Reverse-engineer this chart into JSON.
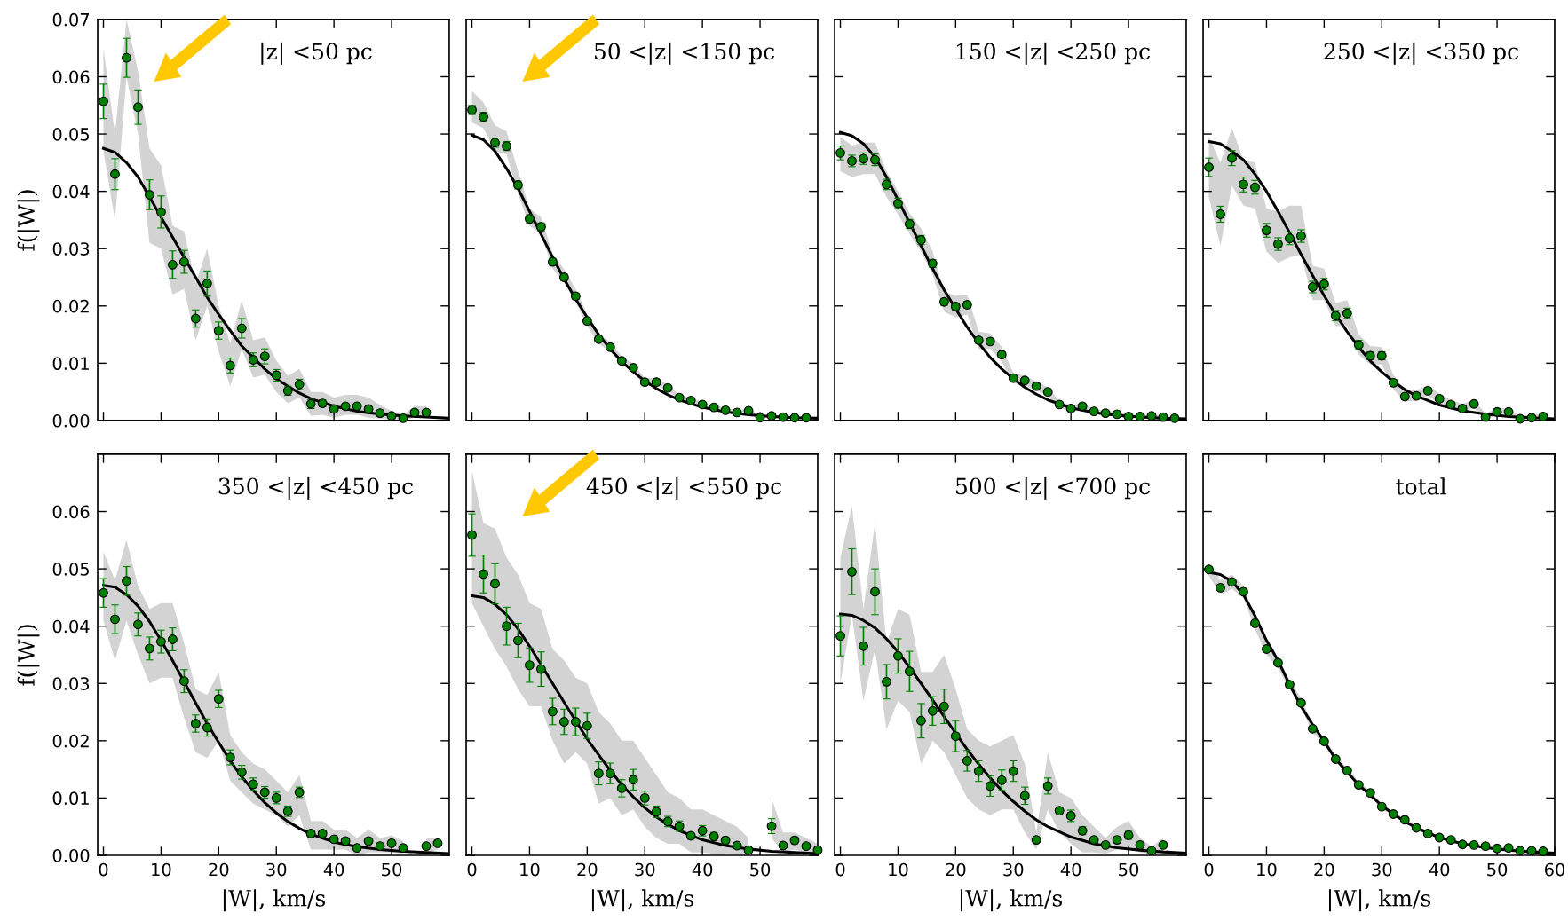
{
  "chart_data": [
    {
      "type": "scatter",
      "title": "|z| <50 pc",
      "ylabel": "f(|W|)",
      "xlim": [
        -1,
        60
      ],
      "xticks": [
        0,
        10,
        20,
        30,
        40,
        50
      ],
      "ylim": [
        0,
        0.07
      ],
      "yticks": [
        {
          "value": 0,
          "label": "0.00"
        },
        0.01,
        0.02,
        0.03,
        0.04,
        0.05,
        0.06,
        0.07
      ],
      "tick_labels": "y",
      "series": [
        {
          "marker": "circle",
          "color": "#008000",
          "x": [
            0,
            2,
            4,
            6,
            8,
            10,
            12,
            14,
            16,
            18,
            20,
            22,
            24,
            26,
            28,
            30,
            32,
            34,
            36,
            38,
            40,
            42,
            44,
            46,
            48,
            50,
            52,
            54,
            56
          ],
          "values": [
            0.0557,
            0.043,
            0.0633,
            0.0547,
            0.0394,
            0.0364,
            0.0272,
            0.0277,
            0.0178,
            0.0239,
            0.0157,
            0.0096,
            0.0161,
            0.0106,
            0.0112,
            0.0079,
            0.0052,
            0.0063,
            0.0029,
            0.003,
            0.002,
            0.0025,
            0.0025,
            0.002,
            0.0013,
            0.0008,
            0.0004,
            0.0014,
            0.0014
          ],
          "errors": [
            0.003,
            0.0027,
            0.0034,
            0.003,
            0.0026,
            0.0028,
            0.0024,
            0.002,
            0.0015,
            0.0022,
            0.0015,
            0.0013,
            0.0017,
            0.0012,
            0.0013,
            0.001,
            0.0008,
            0.0009,
            0.0008,
            0.0006,
            0.0005,
            0.0005,
            0.0005,
            0.0005,
            0.0005,
            0.0004,
            0.0003,
            0.0004,
            0.0004
          ],
          "lower": [
            0.047,
            0.035,
            0.06,
            0.05,
            0.031,
            0.03,
            0.022,
            0.023,
            0.014,
            0.02,
            0.012,
            0.006,
            0.0125,
            0.0075,
            0.008,
            0.005,
            0.003,
            0.004,
            0.0008,
            0.001,
            0.0005,
            0.001,
            0.001,
            0.0005,
            0.0003,
            0.0001,
            0.0,
            0.0005,
            0.0005
          ],
          "upper": [
            0.065,
            0.05,
            0.07,
            0.061,
            0.0475,
            0.0445,
            0.034,
            0.033,
            0.024,
            0.03,
            0.02,
            0.0135,
            0.021,
            0.014,
            0.0145,
            0.0105,
            0.0078,
            0.009,
            0.005,
            0.005,
            0.004,
            0.0045,
            0.0045,
            0.004,
            0.0027,
            0.0017,
            0.001,
            0.0025,
            0.0025
          ]
        },
        {
          "type": "line",
          "marker": "none",
          "color": "#000000",
          "x": [
            0,
            2,
            4,
            6,
            8,
            10,
            12,
            14,
            16,
            18,
            20,
            22,
            24,
            26,
            28,
            30,
            32,
            34,
            36,
            40,
            44,
            48,
            52,
            56,
            60
          ],
          "values": [
            0.0475,
            0.0468,
            0.045,
            0.0425,
            0.039,
            0.0355,
            0.032,
            0.0285,
            0.025,
            0.0215,
            0.0185,
            0.0157,
            0.013,
            0.011,
            0.009,
            0.0073,
            0.006,
            0.0048,
            0.0038,
            0.0025,
            0.0016,
            0.0011,
            0.0008,
            0.0006,
            0.0004
          ]
        }
      ]
    },
    {
      "type": "scatter",
      "title": "50 <|z| <150 pc",
      "xlim": [
        -1,
        60
      ],
      "xticks": [
        0,
        10,
        20,
        30,
        40,
        50
      ],
      "ylim": [
        0,
        0.07
      ],
      "yticks": [
        0,
        0.01,
        0.02,
        0.03,
        0.04,
        0.05,
        0.06,
        0.07
      ],
      "tick_labels": false,
      "series": [
        {
          "marker": "circle",
          "color": "#008000",
          "x": [
            0,
            2,
            4,
            6,
            8,
            10,
            12,
            14,
            16,
            18,
            20,
            22,
            24,
            26,
            28,
            30,
            32,
            34,
            36,
            38,
            40,
            42,
            44,
            46,
            48,
            50,
            52,
            54,
            56,
            58
          ],
          "values": [
            0.0542,
            0.053,
            0.0485,
            0.0479,
            0.0411,
            0.0352,
            0.0338,
            0.0277,
            0.025,
            0.0217,
            0.0174,
            0.0142,
            0.0128,
            0.0104,
            0.0092,
            0.0067,
            0.0067,
            0.0057,
            0.004,
            0.0035,
            0.0028,
            0.0023,
            0.0018,
            0.0014,
            0.0017,
            0.0005,
            0.0008,
            0.0006,
            0.0005,
            0.0005
          ],
          "errors": [
            0.0008,
            0.0008,
            0.0008,
            0.0008,
            0.0007,
            0.0007,
            0.0007,
            0.0006,
            0.0006,
            0.0005,
            0.0005,
            0.0005,
            0.0005,
            0.0004,
            0.0004,
            0.0004,
            0.0004,
            0.0003,
            0.0003,
            0.0003,
            0.0003,
            0.0003,
            0.0003,
            0.0003,
            0.0003,
            0.0002,
            0.0002,
            0.0002,
            0.0002,
            0.0002
          ],
          "lower": [
            0.052,
            0.051,
            0.047,
            0.0465,
            0.0395,
            0.034,
            0.0325,
            0.0265,
            0.024,
            0.0207,
            0.0165,
            0.0134,
            0.012,
            0.0097,
            0.0086,
            0.0061,
            0.0061,
            0.0052,
            0.0036,
            0.0031,
            0.0025,
            0.002,
            0.0015,
            0.0011,
            0.0014,
            0.0003,
            0.0006,
            0.0004,
            0.0003,
            0.0003
          ],
          "upper": [
            0.0575,
            0.0555,
            0.0515,
            0.0505,
            0.0435,
            0.037,
            0.0355,
            0.0292,
            0.0264,
            0.023,
            0.0185,
            0.0152,
            0.0137,
            0.0112,
            0.0099,
            0.0074,
            0.0074,
            0.0063,
            0.0045,
            0.004,
            0.0032,
            0.0027,
            0.0022,
            0.0018,
            0.0021,
            0.0008,
            0.0011,
            0.0009,
            0.0008,
            0.0008
          ]
        },
        {
          "type": "line",
          "marker": "none",
          "color": "#000000",
          "x": [
            0,
            2,
            4,
            6,
            8,
            10,
            12,
            14,
            16,
            18,
            20,
            22,
            24,
            26,
            28,
            30,
            32,
            34,
            36,
            40,
            44,
            48,
            52,
            56,
            60
          ],
          "values": [
            0.0498,
            0.049,
            0.047,
            0.044,
            0.0405,
            0.0365,
            0.0325,
            0.0285,
            0.0247,
            0.0212,
            0.018,
            0.015,
            0.0125,
            0.0103,
            0.0085,
            0.0069,
            0.0056,
            0.0045,
            0.0036,
            0.0023,
            0.0015,
            0.001,
            0.0007,
            0.0005,
            0.0004
          ]
        }
      ]
    },
    {
      "type": "scatter",
      "title": "150 <|z| <250 pc",
      "xlim": [
        -1,
        60
      ],
      "xticks": [
        0,
        10,
        20,
        30,
        40,
        50
      ],
      "ylim": [
        0,
        0.07
      ],
      "yticks": [
        0,
        0.01,
        0.02,
        0.03,
        0.04,
        0.05,
        0.06,
        0.07
      ],
      "tick_labels": false,
      "series": [
        {
          "marker": "circle",
          "color": "#008000",
          "x": [
            0,
            2,
            4,
            6,
            8,
            10,
            12,
            14,
            16,
            18,
            20,
            22,
            24,
            26,
            28,
            30,
            32,
            34,
            36,
            38,
            40,
            42,
            44,
            46,
            48,
            50,
            52,
            54,
            56,
            58
          ],
          "values": [
            0.0467,
            0.0453,
            0.0457,
            0.0455,
            0.0412,
            0.0379,
            0.0343,
            0.0315,
            0.0274,
            0.0207,
            0.0199,
            0.0202,
            0.014,
            0.0138,
            0.0115,
            0.0074,
            0.007,
            0.006,
            0.005,
            0.0028,
            0.0021,
            0.0025,
            0.0016,
            0.0013,
            0.0011,
            0.0007,
            0.0007,
            0.0008,
            0.0006,
            0.0004
          ],
          "errors": [
            0.0012,
            0.001,
            0.001,
            0.001,
            0.0009,
            0.0009,
            0.0008,
            0.0008,
            0.0007,
            0.0006,
            0.0006,
            0.0006,
            0.0005,
            0.0005,
            0.0004,
            0.0004,
            0.0003,
            0.0003,
            0.0003,
            0.0003,
            0.0002,
            0.0002,
            0.0002,
            0.0002,
            0.0002,
            0.0002,
            0.0002,
            0.0002,
            0.0002,
            0.0002
          ],
          "lower": [
            0.0435,
            0.0425,
            0.043,
            0.043,
            0.039,
            0.036,
            0.0325,
            0.0295,
            0.0255,
            0.019,
            0.018,
            0.0185,
            0.0125,
            0.0125,
            0.0103,
            0.0065,
            0.0062,
            0.0052,
            0.0043,
            0.0022,
            0.0016,
            0.002,
            0.0012,
            0.0009,
            0.0007,
            0.0004,
            0.0004,
            0.0005,
            0.0003,
            0.0002
          ],
          "upper": [
            0.0495,
            0.048,
            0.0485,
            0.0485,
            0.0435,
            0.04,
            0.0362,
            0.0335,
            0.0295,
            0.0225,
            0.0218,
            0.022,
            0.0155,
            0.0152,
            0.0128,
            0.0083,
            0.0078,
            0.0068,
            0.0058,
            0.0034,
            0.0027,
            0.003,
            0.0021,
            0.0017,
            0.0015,
            0.001,
            0.001,
            0.0011,
            0.0009,
            0.0006
          ]
        },
        {
          "type": "line",
          "marker": "none",
          "color": "#000000",
          "x": [
            0,
            2,
            4,
            6,
            8,
            10,
            12,
            14,
            16,
            18,
            20,
            22,
            24,
            26,
            28,
            30,
            32,
            34,
            36,
            40,
            44,
            48,
            52,
            56,
            60
          ],
          "values": [
            0.0503,
            0.0497,
            0.0483,
            0.046,
            0.0425,
            0.0385,
            0.0345,
            0.0305,
            0.0265,
            0.0228,
            0.0195,
            0.0163,
            0.0135,
            0.011,
            0.009,
            0.0073,
            0.0058,
            0.0046,
            0.0036,
            0.0022,
            0.0014,
            0.0009,
            0.0006,
            0.0004,
            0.0003
          ]
        }
      ]
    },
    {
      "type": "scatter",
      "title": "250 <|z| <350 pc",
      "xlim": [
        -1,
        60
      ],
      "xticks": [
        0,
        10,
        20,
        30,
        40,
        50
      ],
      "ylim": [
        0,
        0.07
      ],
      "yticks": [
        0,
        0.01,
        0.02,
        0.03,
        0.04,
        0.05,
        0.06,
        0.07
      ],
      "tick_labels": false,
      "series": [
        {
          "marker": "circle",
          "color": "#008000",
          "x": [
            0,
            2,
            4,
            6,
            8,
            10,
            12,
            14,
            16,
            18,
            20,
            22,
            24,
            26,
            28,
            30,
            32,
            34,
            36,
            38,
            40,
            42,
            44,
            46,
            48,
            50,
            52,
            54,
            56,
            58
          ],
          "values": [
            0.0442,
            0.036,
            0.0458,
            0.0412,
            0.0407,
            0.0332,
            0.0308,
            0.0318,
            0.0322,
            0.0233,
            0.0238,
            0.0183,
            0.0187,
            0.0132,
            0.0113,
            0.0113,
            0.0066,
            0.0042,
            0.0043,
            0.0052,
            0.0038,
            0.0028,
            0.0021,
            0.0029,
            0.0006,
            0.0015,
            0.0015,
            0.0003,
            0.0005,
            0.0007
          ],
          "errors": [
            0.0016,
            0.0014,
            0.0013,
            0.0013,
            0.0012,
            0.0012,
            0.0011,
            0.0011,
            0.0011,
            0.001,
            0.001,
            0.0009,
            0.0009,
            0.0008,
            0.0007,
            0.0007,
            0.0006,
            0.0005,
            0.0005,
            0.0005,
            0.0004,
            0.0004,
            0.0004,
            0.0004,
            0.0003,
            0.0003,
            0.0003,
            0.0002,
            0.0002,
            0.0002
          ],
          "lower": [
            0.039,
            0.0305,
            0.041,
            0.0375,
            0.037,
            0.0295,
            0.0275,
            0.0285,
            0.029,
            0.021,
            0.021,
            0.0165,
            0.0165,
            0.0115,
            0.0098,
            0.0098,
            0.0055,
            0.0033,
            0.0035,
            0.0043,
            0.003,
            0.0021,
            0.0015,
            0.0022,
            0.0002,
            0.001,
            0.001,
            0.0001,
            0.0002,
            0.0004
          ],
          "upper": [
            0.0495,
            0.045,
            0.051,
            0.0455,
            0.045,
            0.037,
            0.0365,
            0.0375,
            0.0375,
            0.027,
            0.0265,
            0.0205,
            0.021,
            0.015,
            0.013,
            0.0128,
            0.008,
            0.0053,
            0.0053,
            0.0062,
            0.0047,
            0.0036,
            0.0029,
            0.0036,
            0.0012,
            0.0022,
            0.0021,
            0.0007,
            0.001,
            0.0011
          ]
        },
        {
          "type": "line",
          "marker": "none",
          "color": "#000000",
          "x": [
            0,
            2,
            4,
            6,
            8,
            10,
            12,
            14,
            16,
            18,
            20,
            22,
            24,
            26,
            28,
            30,
            32,
            34,
            36,
            40,
            44,
            48,
            52,
            56,
            60
          ],
          "values": [
            0.0487,
            0.0483,
            0.047,
            0.0455,
            0.043,
            0.04,
            0.0365,
            0.0328,
            0.029,
            0.0253,
            0.0218,
            0.0185,
            0.0155,
            0.0128,
            0.0104,
            0.0085,
            0.0068,
            0.0054,
            0.0043,
            0.0027,
            0.0017,
            0.0011,
            0.0007,
            0.0005,
            0.0003
          ]
        }
      ]
    },
    {
      "type": "scatter",
      "title": "350 <|z| <450 pc",
      "xlabel": "|W|, km/s",
      "ylabel": "f(|W|)",
      "xlim": [
        -1,
        60
      ],
      "xticks": [
        0,
        10,
        20,
        30,
        40,
        50
      ],
      "ylim": [
        0,
        0.07
      ],
      "yticks": [
        {
          "value": 0,
          "label": "0.00"
        },
        0.01,
        0.02,
        0.03,
        0.04,
        0.05,
        0.06
      ],
      "series": [
        {
          "marker": "circle",
          "color": "#008000",
          "x": [
            0,
            2,
            4,
            6,
            8,
            10,
            12,
            14,
            16,
            18,
            20,
            22,
            24,
            26,
            28,
            30,
            32,
            34,
            36,
            38,
            40,
            42,
            44,
            46,
            48,
            50,
            52,
            54,
            56,
            58
          ],
          "values": [
            0.0458,
            0.0412,
            0.0479,
            0.0403,
            0.0361,
            0.0373,
            0.0377,
            0.0304,
            0.023,
            0.0223,
            0.0273,
            0.0171,
            0.0145,
            0.0124,
            0.011,
            0.01,
            0.0077,
            0.011,
            0.0038,
            0.0038,
            0.0028,
            0.0025,
            0.0013,
            0.0025,
            0.0016,
            0.0021,
            0.0013,
            null,
            0.0016,
            0.0021
          ],
          "errors": [
            0.0025,
            0.0025,
            0.0025,
            0.002,
            0.002,
            0.002,
            0.002,
            0.002,
            0.0015,
            0.0015,
            0.0015,
            0.0013,
            0.0012,
            0.0011,
            0.001,
            0.001,
            0.0009,
            0.0009,
            0.0006,
            0.0006,
            0.0005,
            0.0004,
            0.0003,
            0.0004,
            0.0003,
            0.0003,
            0.0003,
            null,
            0.0003,
            0.0003
          ],
          "lower": [
            0.041,
            0.034,
            0.041,
            0.035,
            0.03,
            0.031,
            0.031,
            0.024,
            0.018,
            0.017,
            0.02,
            0.013,
            0.011,
            0.009,
            0.008,
            0.007,
            0.005,
            0.007,
            0.001,
            0.001,
            0.001,
            0.001,
            0.0,
            0.0005,
            0.0005,
            0.0005,
            0.0003,
            null,
            0.0005,
            0.001
          ],
          "upper": [
            0.053,
            0.048,
            0.055,
            0.047,
            0.043,
            0.044,
            0.044,
            0.037,
            0.029,
            0.028,
            0.032,
            0.021,
            0.018,
            0.016,
            0.015,
            0.013,
            0.011,
            0.014,
            0.006,
            0.006,
            0.0045,
            0.0045,
            0.003,
            0.0045,
            0.003,
            0.0035,
            0.0025,
            null,
            0.003,
            0.003
          ]
        },
        {
          "type": "line",
          "marker": "none",
          "color": "#000000",
          "x": [
            0,
            2,
            4,
            6,
            8,
            10,
            12,
            14,
            16,
            18,
            20,
            22,
            24,
            26,
            28,
            30,
            32,
            34,
            36,
            40,
            44,
            48,
            52,
            56,
            60
          ],
          "values": [
            0.0471,
            0.0468,
            0.0455,
            0.0435,
            0.0408,
            0.0375,
            0.034,
            0.0303,
            0.0266,
            0.023,
            0.0197,
            0.0165,
            0.0137,
            0.0113,
            0.0092,
            0.0074,
            0.0059,
            0.0047,
            0.0037,
            0.0023,
            0.0015,
            0.001,
            0.0007,
            0.0005,
            0.0003
          ]
        }
      ]
    },
    {
      "type": "scatter",
      "title": "450 <|z| <550 pc",
      "xlabel": "|W|, km/s",
      "xlim": [
        -1,
        60
      ],
      "xticks": [
        0,
        10,
        20,
        30,
        40,
        50
      ],
      "ylim": [
        0,
        0.07
      ],
      "yticks": [
        0,
        0.01,
        0.02,
        0.03,
        0.04,
        0.05,
        0.06
      ],
      "tick_labels": "x",
      "series": [
        {
          "marker": "circle",
          "color": "#008000",
          "x": [
            0,
            2,
            4,
            6,
            8,
            10,
            12,
            14,
            16,
            18,
            20,
            22,
            24,
            26,
            28,
            30,
            32,
            34,
            36,
            38,
            40,
            42,
            44,
            46,
            48,
            50,
            52,
            54,
            56,
            58,
            60
          ],
          "values": [
            0.0559,
            0.0491,
            0.0474,
            0.04,
            0.0375,
            0.0332,
            0.0325,
            0.0251,
            0.0233,
            0.0233,
            0.0226,
            0.0143,
            0.0143,
            0.0117,
            0.0132,
            0.01,
            0.0076,
            0.0059,
            0.0051,
            0.0034,
            0.0043,
            0.0033,
            0.0026,
            0.0017,
            0.0009,
            null,
            0.0051,
            0.0017,
            0.0026,
            0.0016,
            0.0009
          ],
          "errors": [
            0.0037,
            0.0033,
            0.0035,
            0.0033,
            0.003,
            0.003,
            0.003,
            0.0023,
            0.0022,
            0.0024,
            0.0022,
            0.002,
            0.0018,
            0.0015,
            0.0018,
            0.0012,
            0.001,
            0.0009,
            0.0009,
            0.0006,
            0.0009,
            0.0007,
            0.0006,
            0.0004,
            0.0003,
            null,
            0.0013,
            0.0004,
            0.0006,
            0.0004,
            0.0003
          ],
          "lower": [
            0.044,
            0.04,
            0.036,
            0.033,
            0.029,
            0.026,
            0.026,
            0.02,
            0.016,
            0.018,
            0.016,
            0.009,
            0.01,
            0.007,
            0.008,
            0.005,
            0.003,
            0.002,
            0.002,
            0.0005,
            0.0005,
            0.0003,
            0.0003,
            0.0002,
            0.0,
            null,
            0.003,
            0.0005,
            0.001,
            0.0005,
            0.0005
          ],
          "upper": [
            0.067,
            0.058,
            0.057,
            0.052,
            0.049,
            0.044,
            0.043,
            0.036,
            0.034,
            0.031,
            0.03,
            0.025,
            0.023,
            0.02,
            0.02,
            0.017,
            0.014,
            0.011,
            0.01,
            0.008,
            0.008,
            0.007,
            0.006,
            0.005,
            0.003,
            null,
            0.01,
            0.004,
            0.004,
            0.003,
            0.002
          ]
        },
        {
          "type": "line",
          "marker": "none",
          "color": "#000000",
          "x": [
            0,
            2,
            4,
            6,
            8,
            10,
            12,
            14,
            16,
            18,
            20,
            22,
            24,
            26,
            28,
            30,
            32,
            34,
            36,
            40,
            44,
            48,
            52,
            56,
            60
          ],
          "values": [
            0.0453,
            0.045,
            0.0438,
            0.042,
            0.0395,
            0.0365,
            0.0333,
            0.03,
            0.0267,
            0.0235,
            0.0203,
            0.0175,
            0.0148,
            0.0123,
            0.0102,
            0.0083,
            0.0067,
            0.0054,
            0.0043,
            0.0027,
            0.0017,
            0.0011,
            0.0007,
            0.0005,
            0.0003
          ]
        }
      ]
    },
    {
      "type": "scatter",
      "title": "500 <|z| <700 pc",
      "xlabel": "|W|, km/s",
      "xlim": [
        -1,
        60
      ],
      "xticks": [
        0,
        10,
        20,
        30,
        40,
        50
      ],
      "ylim": [
        0,
        0.07
      ],
      "yticks": [
        0,
        0.01,
        0.02,
        0.03,
        0.04,
        0.05,
        0.06
      ],
      "tick_labels": "x",
      "series": [
        {
          "marker": "circle",
          "color": "#008000",
          "x": [
            0,
            2,
            4,
            6,
            8,
            10,
            12,
            14,
            16,
            18,
            20,
            22,
            24,
            26,
            28,
            30,
            32,
            34,
            36,
            38,
            40,
            42,
            44,
            46,
            48,
            50,
            52,
            54,
            56
          ],
          "values": [
            0.0383,
            0.0495,
            0.0365,
            0.046,
            0.0303,
            0.0348,
            0.0321,
            0.0235,
            0.0252,
            0.026,
            0.0208,
            0.0165,
            0.0147,
            0.0121,
            0.0131,
            0.0147,
            0.0104,
            0.0027,
            0.0121,
            0.0078,
            0.0069,
            0.0043,
            0.0027,
            0.0018,
            0.0027,
            0.0035,
            0.0018,
            0.0008,
            0.0018
          ],
          "errors": [
            0.0035,
            0.004,
            0.0033,
            0.004,
            0.003,
            0.003,
            0.0035,
            0.003,
            0.0025,
            0.003,
            0.0027,
            0.0018,
            0.0018,
            0.0018,
            0.0018,
            0.0018,
            0.0015,
            0.0003,
            0.0014,
            0.0004,
            0.001,
            0.0007,
            0.0004,
            0.0003,
            0.0004,
            0.0007,
            0.0003,
            0.0003,
            0.0003
          ],
          "lower": [
            0.03,
            0.042,
            0.027,
            0.036,
            0.022,
            0.027,
            0.025,
            0.016,
            0.02,
            0.018,
            0.014,
            0.01,
            0.008,
            0.007,
            0.008,
            0.008,
            0.004,
            0.001,
            0.008,
            0.004,
            0.002,
            0.0005,
            0.0005,
            0.0003,
            0.001,
            0.001,
            0.0005,
            0.0002,
            0.0005
          ],
          "upper": [
            0.052,
            0.061,
            0.043,
            0.058,
            0.037,
            0.043,
            0.042,
            0.032,
            0.032,
            0.035,
            0.029,
            0.022,
            0.02,
            0.019,
            0.02,
            0.021,
            0.016,
            0.004,
            0.018,
            0.011,
            0.01,
            0.007,
            0.005,
            0.003,
            0.005,
            0.006,
            0.003,
            0.0015,
            0.003
          ]
        },
        {
          "type": "line",
          "marker": "none",
          "color": "#000000",
          "x": [
            0,
            2,
            4,
            6,
            8,
            10,
            12,
            14,
            16,
            18,
            20,
            22,
            24,
            26,
            28,
            30,
            32,
            34,
            36,
            40,
            44,
            48,
            52,
            56,
            60
          ],
          "values": [
            0.0421,
            0.0419,
            0.041,
            0.0397,
            0.0378,
            0.0355,
            0.0328,
            0.03,
            0.0271,
            0.0242,
            0.0213,
            0.0185,
            0.0159,
            0.0135,
            0.0113,
            0.0094,
            0.0077,
            0.0062,
            0.005,
            0.0032,
            0.002,
            0.0013,
            0.0009,
            0.0006,
            0.0004
          ]
        }
      ]
    },
    {
      "type": "scatter",
      "title": "total",
      "xlabel": "|W|, km/s",
      "xlim": [
        -1,
        60
      ],
      "xticks": [
        0,
        10,
        20,
        30,
        40,
        50,
        60
      ],
      "ylim": [
        0,
        0.07
      ],
      "yticks": [
        0,
        0.01,
        0.02,
        0.03,
        0.04,
        0.05,
        0.06
      ],
      "tick_labels": "x",
      "series": [
        {
          "marker": "circle",
          "color": "#008000",
          "x": [
            0,
            2,
            4,
            6,
            8,
            10,
            12,
            14,
            16,
            18,
            20,
            22,
            24,
            26,
            28,
            30,
            32,
            34,
            36,
            38,
            40,
            42,
            44,
            46,
            48,
            50,
            52,
            54,
            56,
            58
          ],
          "values": [
            0.0499,
            0.0467,
            0.0477,
            0.046,
            0.0405,
            0.036,
            0.0336,
            0.0298,
            0.0266,
            0.0221,
            0.0199,
            0.0168,
            0.0148,
            0.0123,
            0.0109,
            0.0085,
            0.0072,
            0.0062,
            0.0048,
            0.0038,
            0.0031,
            0.0027,
            0.0019,
            0.0018,
            0.0016,
            0.0012,
            0.0013,
            0.0008,
            0.0008,
            0.0007
          ],
          "errors": [
            0.0004,
            0.0004,
            0.0004,
            0.0004,
            0.0004,
            0.0004,
            0.0004,
            0.0004,
            0.0003,
            0.0003,
            0.0003,
            0.0003,
            0.0003,
            0.0003,
            0.0003,
            0.0002,
            0.0002,
            0.0002,
            0.0002,
            0.0002,
            0.0002,
            0.0002,
            0.0002,
            0.0002,
            0.0002,
            0.0002,
            0.0002,
            0.0002,
            0.0002,
            0.0002
          ],
          "lower": [
            0.0488,
            0.0455,
            0.0465,
            0.045,
            0.0395,
            0.035,
            0.0327,
            0.029,
            0.0258,
            0.0214,
            0.0193,
            0.0162,
            0.0143,
            0.0118,
            0.0105,
            0.0081,
            0.0069,
            0.0059,
            0.0045,
            0.0036,
            0.0029,
            0.0025,
            0.0017,
            0.0016,
            0.0014,
            0.001,
            0.0011,
            0.0006,
            0.0006,
            0.0005
          ],
          "upper": [
            0.0512,
            0.048,
            0.049,
            0.047,
            0.0415,
            0.037,
            0.0345,
            0.0306,
            0.0274,
            0.0228,
            0.0205,
            0.0174,
            0.0153,
            0.0128,
            0.0113,
            0.0089,
            0.0075,
            0.0065,
            0.0051,
            0.0041,
            0.0033,
            0.0029,
            0.0021,
            0.002,
            0.0018,
            0.0014,
            0.0015,
            0.001,
            0.001,
            0.0009
          ]
        },
        {
          "type": "line",
          "marker": "none",
          "color": "#000000",
          "x": [
            0,
            2,
            4,
            6,
            8,
            10,
            12,
            14,
            16,
            18,
            20,
            22,
            24,
            26,
            28,
            30,
            32,
            34,
            36,
            40,
            44,
            48,
            52,
            56,
            60
          ],
          "values": [
            0.0494,
            0.049,
            0.0478,
            0.0455,
            0.0418,
            0.0375,
            0.034,
            0.0298,
            0.026,
            0.0228,
            0.0199,
            0.0168,
            0.0145,
            0.0123,
            0.0105,
            0.0087,
            0.0072,
            0.0059,
            0.0048,
            0.0031,
            0.002,
            0.0013,
            0.0009,
            0.0006,
            0.0004
          ]
        }
      ]
    }
  ]
}
